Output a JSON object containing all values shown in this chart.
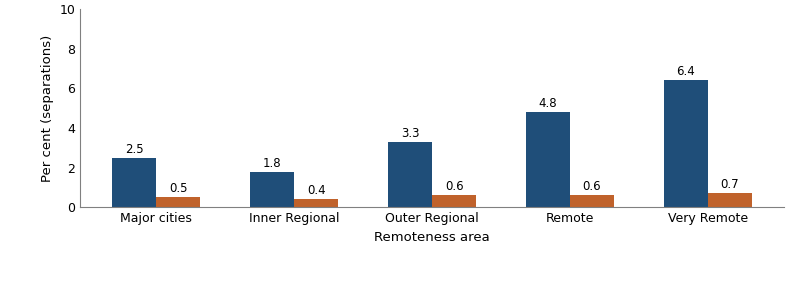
{
  "categories": [
    "Major cities",
    "Inner Regional",
    "Outer Regional",
    "Remote",
    "Very Remote"
  ],
  "indigenous_values": [
    2.5,
    1.8,
    3.3,
    4.8,
    6.4
  ],
  "non_indigenous_values": [
    0.5,
    0.4,
    0.6,
    0.6,
    0.7
  ],
  "indigenous_color": "#1F4E79",
  "non_indigenous_color": "#C0622B",
  "ylabel": "Per cent (separations)",
  "xlabel": "Remoteness area",
  "ylim": [
    0,
    10
  ],
  "yticks": [
    0,
    2,
    4,
    6,
    8,
    10
  ],
  "bar_width": 0.32,
  "label_fontsize": 8.5,
  "axis_fontsize": 9.5,
  "legend_fontsize": 8.5,
  "tick_fontsize": 9
}
